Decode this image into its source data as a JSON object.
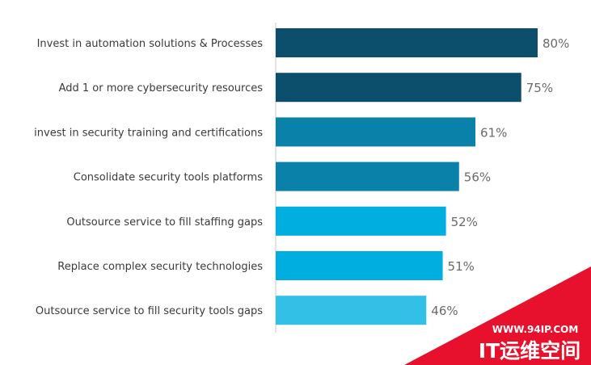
{
  "chart_data": {
    "type": "bar",
    "orientation": "horizontal",
    "categories": [
      "Invest in automation solutions & Processes",
      "Add 1 or more cybersecurity resources",
      "invest in security training and certifications",
      "Consolidate security tools platforms",
      "Outsource service to fill staffing gaps",
      "Replace complex security technologies",
      "Outsource service to fill security tools gaps"
    ],
    "values": [
      80,
      75,
      61,
      56,
      52,
      51,
      46
    ],
    "value_labels": [
      "80%",
      "75%",
      "61%",
      "56%",
      "52%",
      "51%",
      "46%"
    ],
    "bar_colors": [
      "#0b4f6c",
      "#0b4f6c",
      "#0a81a8",
      "#0a81a8",
      "#00aedf",
      "#00aedf",
      "#33c0e6"
    ],
    "xlim": [
      0,
      100
    ],
    "grid": false
  },
  "watermark": {
    "url": "WWW.94IP.COM",
    "name": "IT运维空间",
    "color": "#e8112d"
  }
}
